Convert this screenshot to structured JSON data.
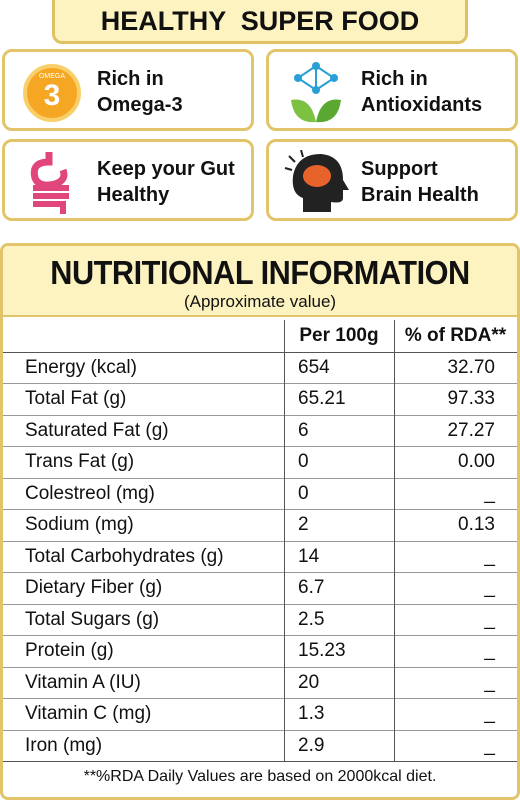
{
  "header": {
    "title": "HEALTHY  SUPER FOOD"
  },
  "features": [
    {
      "line1": "Rich in",
      "line2": "Omega-3",
      "badge_top": "OMEGA",
      "badge_num": "3"
    },
    {
      "line1": "Rich in",
      "line2": "Antioxidants"
    },
    {
      "line1": "Keep your Gut",
      "line2": "Healthy"
    },
    {
      "line1": "Support",
      "line2": "Brain Health"
    }
  ],
  "nutrition": {
    "title": "NUTRITIONAL INFORMATION",
    "subtitle": "(Approximate value)",
    "columns": [
      "Per 100g",
      "% of RDA**"
    ],
    "rows": [
      [
        "Energy (kcal)",
        "654",
        "32.70"
      ],
      [
        "Total Fat (g)",
        "65.21",
        "97.33"
      ],
      [
        "Saturated Fat (g)",
        "6",
        "27.27"
      ],
      [
        "Trans Fat (g)",
        "0",
        "0.00"
      ],
      [
        "Colestreol (mg)",
        "0",
        "_"
      ],
      [
        "Sodium (mg)",
        "2",
        "0.13"
      ],
      [
        "Total Carbohydrates (g)",
        "14",
        "_"
      ],
      [
        "Dietary Fiber (g)",
        "6.7",
        "_"
      ],
      [
        "Total Sugars (g)",
        "2.5",
        "_"
      ],
      [
        "Protein (g)",
        "15.23",
        "_"
      ],
      [
        "Vitamin A (IU)",
        "20",
        "_"
      ],
      [
        "Vitamin C (mg)",
        "1.3",
        "_"
      ],
      [
        "Iron (mg)",
        "2.9",
        "_"
      ]
    ],
    "footnote": "**%RDA Daily Values are based on 2000kcal diet."
  }
}
